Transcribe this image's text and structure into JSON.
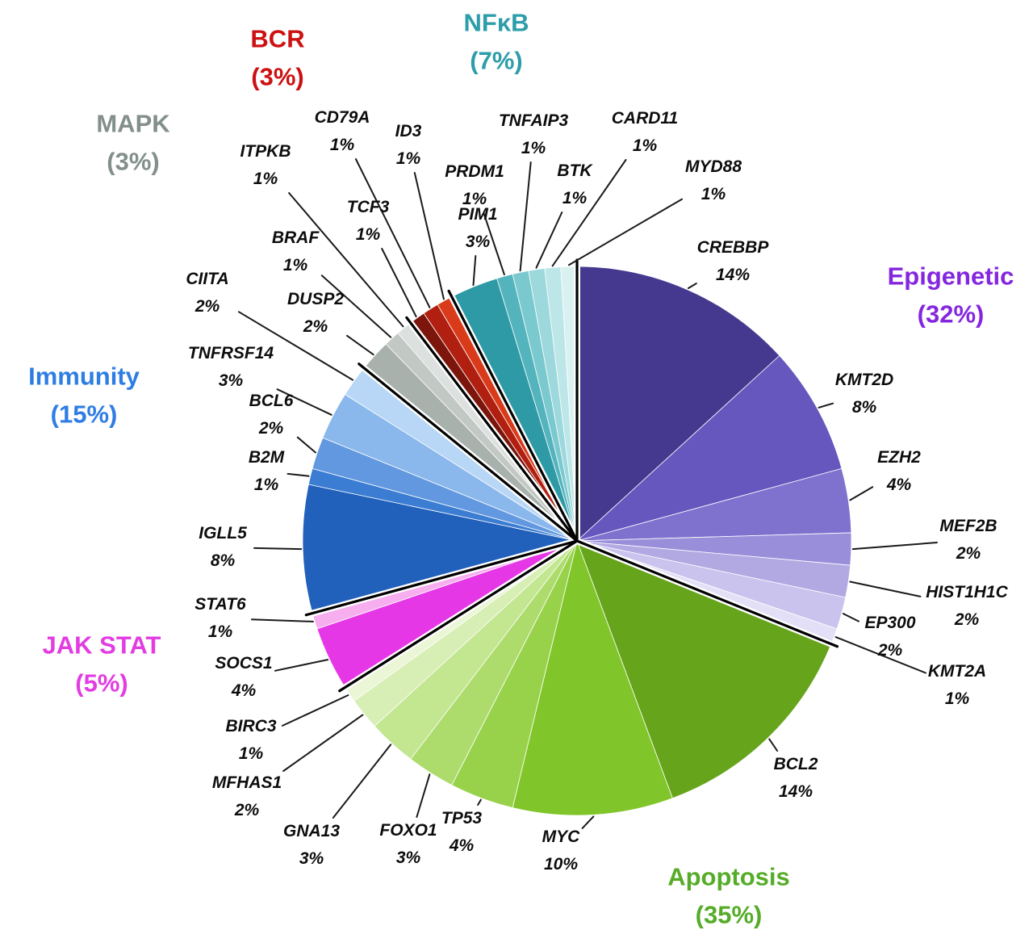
{
  "chart_data": {
    "type": "pie",
    "legend_position": "around",
    "groups": [
      {
        "label": "Epigenetic",
        "pct_label": "(32%)",
        "color": "#8426df",
        "slices": [
          {
            "name": "CREBBP",
            "pct": "14%",
            "value": 14,
            "color": "#44398f"
          },
          {
            "name": "KMT2D",
            "pct": "8%",
            "value": 8,
            "color": "#6557be"
          },
          {
            "name": "EZH2",
            "pct": "4%",
            "value": 4,
            "color": "#7f72cf"
          },
          {
            "name": "MEF2B",
            "pct": "2%",
            "value": 2,
            "color": "#998ed9"
          },
          {
            "name": "HIST1H1C",
            "pct": "2%",
            "value": 2,
            "color": "#b2a9e3"
          },
          {
            "name": "EP300",
            "pct": "2%",
            "value": 2,
            "color": "#cac3ed"
          },
          {
            "name": "KMT2A",
            "pct": "1%",
            "value": 1,
            "color": "#e3dff6"
          }
        ]
      },
      {
        "label": "Apoptosis",
        "pct_label": "(35%)",
        "color": "#55ac28",
        "slices": [
          {
            "name": "BCL2",
            "pct": "14%",
            "value": 14,
            "color": "#66a41c"
          },
          {
            "name": "MYC",
            "pct": "10%",
            "value": 10,
            "color": "#80c62b"
          },
          {
            "name": "TP53",
            "pct": "4%",
            "value": 4,
            "color": "#98d24a"
          },
          {
            "name": "FOXO1",
            "pct": "3%",
            "value": 3,
            "color": "#addc6d"
          },
          {
            "name": "GNA13",
            "pct": "3%",
            "value": 3,
            "color": "#c3e691"
          },
          {
            "name": "MFHAS1",
            "pct": "2%",
            "value": 2,
            "color": "#d7eeb4"
          },
          {
            "name": "BIRC3",
            "pct": "1%",
            "value": 1,
            "color": "#eaf6d6"
          }
        ]
      },
      {
        "label": "JAK STAT",
        "pct_label": "(5%)",
        "color": "#e23ce2",
        "slices": [
          {
            "name": "SOCS1",
            "pct": "4%",
            "value": 4,
            "color": "#e637e6"
          },
          {
            "name": "STAT6",
            "pct": "1%",
            "value": 1,
            "color": "#f6aeef"
          }
        ]
      },
      {
        "label": "Immunity",
        "pct_label": "(15%)",
        "color": "#2e7de5",
        "slices": [
          {
            "name": "IGLL5",
            "pct": "8%",
            "value": 8,
            "color": "#2160bb"
          },
          {
            "name": "B2M",
            "pct": "1%",
            "value": 1,
            "color": "#3b7dd2"
          },
          {
            "name": "BCL6",
            "pct": "2%",
            "value": 2,
            "color": "#6298e0"
          },
          {
            "name": "TNFRSF14",
            "pct": "3%",
            "value": 3,
            "color": "#8ab8ec"
          },
          {
            "name": "CIITA",
            "pct": "2%",
            "value": 2,
            "color": "#b8d6f6"
          }
        ]
      },
      {
        "label": "MAPK",
        "pct_label": "(3%)",
        "color": "#838f8b",
        "slices": [
          {
            "name": "DUSP2",
            "pct": "2%",
            "value": 2,
            "color": "#a9b1ad"
          },
          {
            "name": "BRAF",
            "pct": "1%",
            "value": 1,
            "color": "#c2c8c4"
          },
          {
            "name": "ITPKB",
            "pct": "1%",
            "value": 1,
            "color": "#dce0de"
          }
        ]
      },
      {
        "label": "BCR",
        "pct_label": "(3%)",
        "color": "#cc1111",
        "slices": [
          {
            "name": "TCF3",
            "pct": "1%",
            "value": 1,
            "color": "#7c150c"
          },
          {
            "name": "CD79A",
            "pct": "1%",
            "value": 1,
            "color": "#b01f0f"
          },
          {
            "name": "ID3",
            "pct": "1%",
            "value": 1,
            "color": "#d93b1a"
          }
        ]
      },
      {
        "label": "NFκB",
        "pct_label": "(7%)",
        "color": "#2d9daa",
        "slices": [
          {
            "name": "PIM1",
            "pct": "3%",
            "value": 3,
            "color": "#2e9aa6"
          },
          {
            "name": "PRDM1",
            "pct": "1%",
            "value": 1,
            "color": "#54b4bd"
          },
          {
            "name": "TNFAIP3",
            "pct": "1%",
            "value": 1,
            "color": "#7ac9cf"
          },
          {
            "name": "BTK",
            "pct": "1%",
            "value": 1,
            "color": "#9cd8dc"
          },
          {
            "name": "CARD11",
            "pct": "1%",
            "value": 1,
            "color": "#bce6e8"
          },
          {
            "name": "MYD88",
            "pct": "1%",
            "value": 1,
            "color": "#daf1f1"
          }
        ]
      }
    ]
  }
}
